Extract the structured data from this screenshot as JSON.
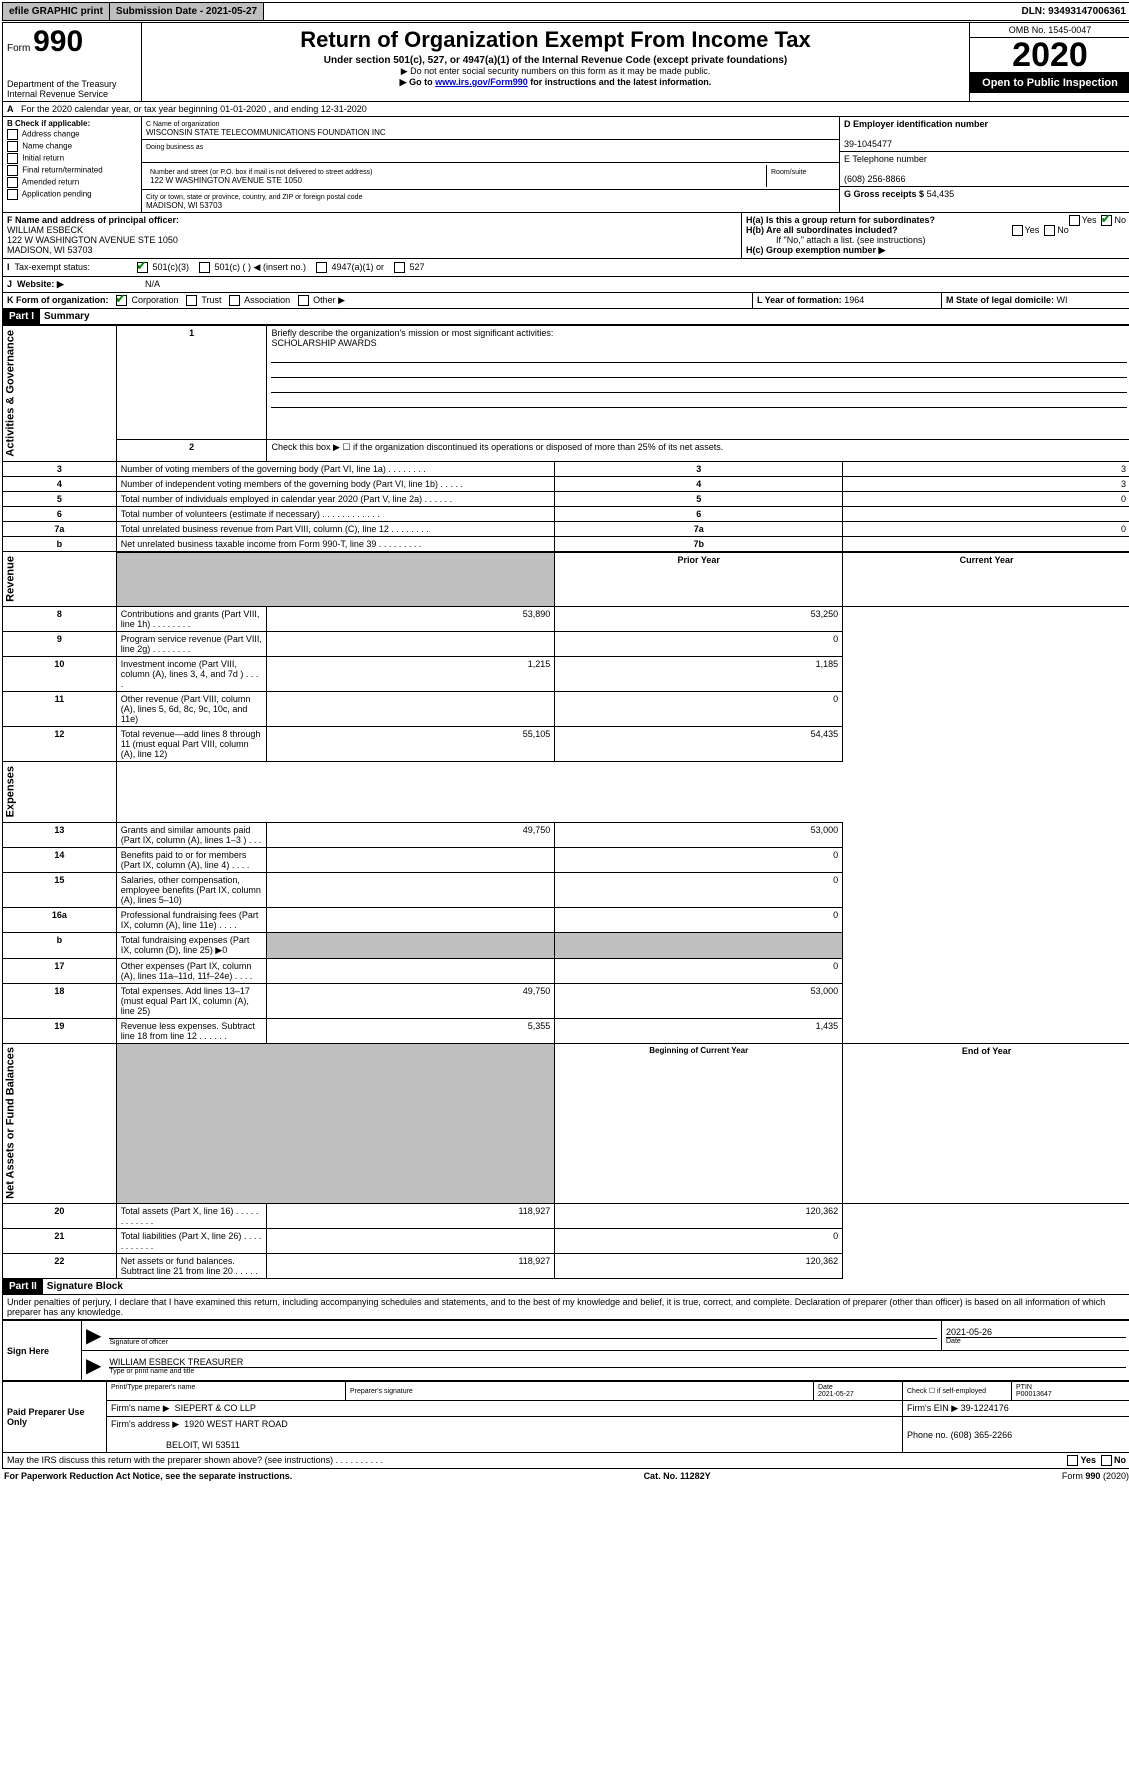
{
  "topbar": {
    "efile": "efile GRAPHIC print",
    "subdate_label": "Submission Date - 2021-05-27",
    "dln": "DLN: 93493147006361"
  },
  "header": {
    "form_prefix": "Form",
    "form_num": "990",
    "dept": "Department of the Treasury",
    "irs": "Internal Revenue Service",
    "title": "Return of Organization Exempt From Income Tax",
    "subtitle": "Under section 501(c), 527, or 4947(a)(1) of the Internal Revenue Code (except private foundations)",
    "note1": "▶ Do not enter social security numbers on this form as it may be made public.",
    "note2_pre": "▶ Go to ",
    "note2_link": "www.irs.gov/Form990",
    "note2_post": " for instructions and the latest information.",
    "omb": "OMB No. 1545-0047",
    "year": "2020",
    "open": "Open to Public Inspection"
  },
  "line_a": "For the 2020 calendar year, or tax year beginning 01-01-2020    , and ending 12-31-2020",
  "box_b": {
    "title": "B Check if applicable:",
    "items": [
      "Address change",
      "Name change",
      "Initial return",
      "Final return/terminated",
      "Amended return",
      "Application pending"
    ]
  },
  "box_c": {
    "name_label": "C Name of organization",
    "name": "WISCONSIN STATE TELECOMMUNICATIONS FOUNDATION INC",
    "dba_label": "Doing business as",
    "addr_label": "Number and street (or P.O. box if mail is not delivered to street address)",
    "room_label": "Room/suite",
    "addr": "122 W WASHINGTON AVENUE STE 1050",
    "city_label": "City or town, state or province, country, and ZIP or foreign postal code",
    "city": "MADISON, WI  53703"
  },
  "box_d": {
    "label": "D Employer identification number",
    "value": "39-1045477"
  },
  "box_e": {
    "label": "E Telephone number",
    "value": "(608) 256-8866"
  },
  "box_g": {
    "label": "G Gross receipts $",
    "value": "54,435"
  },
  "box_f": {
    "label": "F  Name and address of principal officer:",
    "name": "WILLIAM ESBECK",
    "addr": "122 W WASHINGTON AVENUE STE 1050",
    "city": "MADISON, WI  53703"
  },
  "box_h": {
    "a": "H(a)  Is this a group return for subordinates?",
    "b": "H(b)  Are all subordinates included?",
    "note": "If \"No,\" attach a list. (see instructions)",
    "c": "H(c)  Group exemption number ▶"
  },
  "tax_status_label": "Tax-exempt status:",
  "tax_opts": [
    "501(c)(3)",
    "501(c) (   ) ◀ (insert no.)",
    "4947(a)(1) or",
    "527"
  ],
  "website_label": "Website: ▶",
  "website": "N/A",
  "box_k": "K Form of organization:",
  "k_opts": [
    "Corporation",
    "Trust",
    "Association",
    "Other ▶"
  ],
  "box_l": {
    "label": "L Year of formation:",
    "value": "1964"
  },
  "box_m": {
    "label": "M State of legal domicile:",
    "value": "WI"
  },
  "part1": {
    "label": "Part I",
    "title": "Summary"
  },
  "summary": {
    "q1": "Briefly describe the organization's mission or most significant activities:",
    "q1_answer": "SCHOLARSHIP AWARDS",
    "q2": "Check this box ▶ ☐  if the organization discontinued its operations or disposed of more than 25% of its net assets.",
    "rows_gov": [
      {
        "n": "3",
        "d": "Number of voting members of the governing body (Part VI, line 1a)   .    .    .    .    .    .    .    .",
        "c": "3",
        "v": "3"
      },
      {
        "n": "4",
        "d": "Number of independent voting members of the governing body (Part VI, line 1b)   .    .    .    .    .",
        "c": "4",
        "v": "3"
      },
      {
        "n": "5",
        "d": "Total number of individuals employed in calendar year 2020 (Part V, line 2a)   .    .    .    .    .    .",
        "c": "5",
        "v": "0"
      },
      {
        "n": "6",
        "d": "Total number of volunteers (estimate if necessary)    .    .    .    .    .    .    .    .    .    .    .    .",
        "c": "6",
        "v": ""
      },
      {
        "n": "7a",
        "d": "Total unrelated business revenue from Part VIII, column (C), line 12   .    .    .    .    .    .    .    .",
        "c": "7a",
        "v": "0"
      },
      {
        "n": "b",
        "d": "Net unrelated business taxable income from Form 990-T, line 39    .    .    .    .    .    .    .    .    .",
        "c": "7b",
        "v": ""
      }
    ],
    "hdr_prior": "Prior Year",
    "hdr_curr": "Current Year",
    "rows_rev": [
      {
        "n": "8",
        "d": "Contributions and grants (Part VIII, line 1h)   .    .    .    .    .    .    .    .",
        "p": "53,890",
        "c": "53,250"
      },
      {
        "n": "9",
        "d": "Program service revenue (Part VIII, line 2g)   .    .    .    .    .    .    .    .",
        "p": "",
        "c": "0"
      },
      {
        "n": "10",
        "d": "Investment income (Part VIII, column (A), lines 3, 4, and 7d )   .    .    .    .",
        "p": "1,215",
        "c": "1,185"
      },
      {
        "n": "11",
        "d": "Other revenue (Part VIII, column (A), lines 5, 6d, 8c, 9c, 10c, and 11e)",
        "p": "",
        "c": "0"
      },
      {
        "n": "12",
        "d": "Total revenue—add lines 8 through 11 (must equal Part VIII, column (A), line 12)",
        "p": "55,105",
        "c": "54,435"
      }
    ],
    "rows_exp": [
      {
        "n": "13",
        "d": "Grants and similar amounts paid (Part IX, column (A), lines 1–3 )   .    .    .",
        "p": "49,750",
        "c": "53,000"
      },
      {
        "n": "14",
        "d": "Benefits paid to or for members (Part IX, column (A), line 4)   .    .    .    .",
        "p": "",
        "c": "0"
      },
      {
        "n": "15",
        "d": "Salaries, other compensation, employee benefits (Part IX, column (A), lines 5–10)",
        "p": "",
        "c": "0"
      },
      {
        "n": "16a",
        "d": "Professional fundraising fees (Part IX, column (A), line 11e)   .    .    .    .",
        "p": "",
        "c": "0"
      },
      {
        "n": "b",
        "d": "Total fundraising expenses (Part IX, column (D), line 25) ▶0",
        "p": "grey",
        "c": "grey"
      },
      {
        "n": "17",
        "d": "Other expenses (Part IX, column (A), lines 11a–11d, 11f–24e)   .    .    .    .",
        "p": "",
        "c": "0"
      },
      {
        "n": "18",
        "d": "Total expenses. Add lines 13–17 (must equal Part IX, column (A), line 25)",
        "p": "49,750",
        "c": "53,000"
      },
      {
        "n": "19",
        "d": "Revenue less expenses. Subtract line 18 from line 12    .    .    .    .    .    .",
        "p": "5,355",
        "c": "1,435"
      }
    ],
    "hdr_beg": "Beginning of Current Year",
    "hdr_end": "End of Year",
    "rows_net": [
      {
        "n": "20",
        "d": "Total assets (Part X, line 16)   .    .    .    .    .    .    .    .    .    .    .    .",
        "p": "118,927",
        "c": "120,362"
      },
      {
        "n": "21",
        "d": "Total liabilities (Part X, line 26)    .    .    .    .    .    .    .    .    .    .    .",
        "p": "",
        "c": "0"
      },
      {
        "n": "22",
        "d": "Net assets or fund balances. Subtract line 21 from line 20    .    .    .    .    .",
        "p": "118,927",
        "c": "120,362"
      }
    ]
  },
  "part2": {
    "label": "Part II",
    "title": "Signature Block"
  },
  "perjury": "Under penalties of perjury, I declare that I have examined this return, including accompanying schedules and statements, and to the best of my knowledge and belief, it is true, correct, and complete. Declaration of preparer (other than officer) is based on all information of which preparer has any knowledge.",
  "sign": {
    "here": "Sign Here",
    "sig_label": "Signature of officer",
    "date": "2021-05-26",
    "date_label": "Date",
    "name": "WILLIAM ESBECK  TREASURER",
    "name_label": "Type or print name and title"
  },
  "paid": {
    "label": "Paid Preparer Use Only",
    "h1": "Print/Type preparer's name",
    "h2": "Preparer's signature",
    "h3": "Date",
    "h4": "Check ☐ if self-employed",
    "h5": "PTIN",
    "date": "2021-05-27",
    "ptin": "P00013647",
    "firm_label": "Firm's name    ▶",
    "firm": "SIEPERT & CO LLP",
    "ein_label": "Firm's EIN ▶",
    "ein": "39-1224176",
    "addr_label": "Firm's address ▶",
    "addr": "1920 WEST HART ROAD",
    "addr2": "BELOIT, WI  53511",
    "phone_label": "Phone no.",
    "phone": "(608) 365-2266"
  },
  "discuss": "May the IRS discuss this return with the preparer shown above? (see instructions)    .    .    .    .    .    .    .    .    .    .",
  "footer": {
    "left": "For Paperwork Reduction Act Notice, see the separate instructions.",
    "mid": "Cat. No. 11282Y",
    "right": "Form 990 (2020)"
  },
  "labels": {
    "gov": "Activities & Governance",
    "rev": "Revenue",
    "exp": "Expenses",
    "net": "Net Assets or Fund Balances",
    "yes": "Yes",
    "no": "No"
  }
}
